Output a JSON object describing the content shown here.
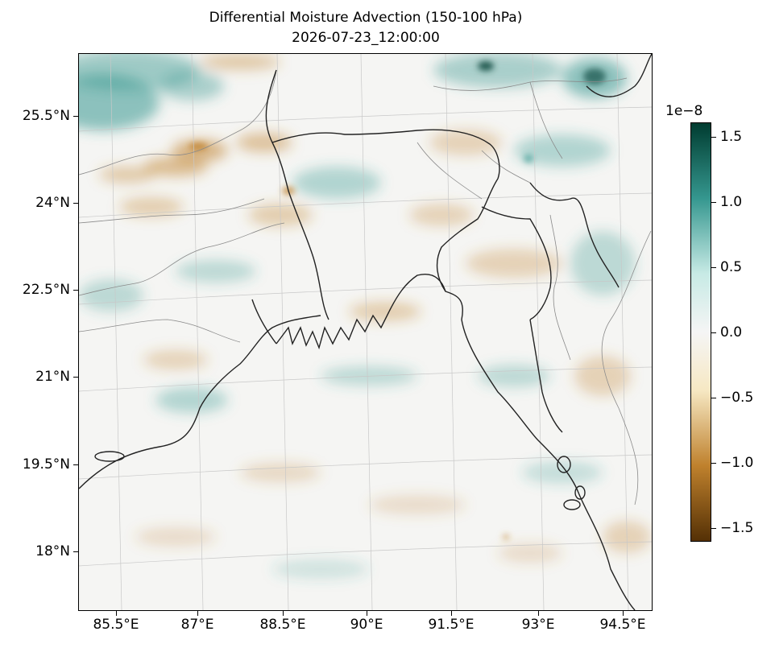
{
  "figure": {
    "title_line1": "Differential Moisture Advection (150-100 hPa)",
    "title_line2": "2026-07-23_12:00:00"
  },
  "map": {
    "projection": "lambert-conformal",
    "lon_range": [
      84.85,
      95.2
    ],
    "lat_range": [
      16.9,
      26.7
    ],
    "coastline_color": "#222222",
    "border_color": "#8a8a8a",
    "gridline_color": "#c8c8c8",
    "lat_labels": [
      "25.5°N",
      "24°N",
      "22.5°N",
      "21°N",
      "19.5°N",
      "18°N"
    ],
    "lon_labels": [
      "85.5°E",
      "87°E",
      "88.5°E",
      "90°E",
      "91.5°E",
      "93°E",
      "94.5°E"
    ],
    "field": {
      "name": "differential moisture advection",
      "colormap": "BrBG",
      "pattern": "mostly near-zero white/pale field; teal positive patches in the north and along the east, tan-brown negative patches in the northwest and scattered elsewhere"
    }
  },
  "colorbar": {
    "exponent_label": "1e−8",
    "vmin": -1.6,
    "vmax": 1.6,
    "tick_labels": [
      "1.5",
      "1.0",
      "0.5",
      "0.0",
      "−0.5",
      "−1.0",
      "−1.5"
    ],
    "colors": {
      "min": "#543005",
      "low": "#bf812d",
      "midlow": "#f6e8c3",
      "mid": "#f5f5f5",
      "midhigh": "#c7eae5",
      "high": "#35978f",
      "max": "#003c30"
    }
  }
}
